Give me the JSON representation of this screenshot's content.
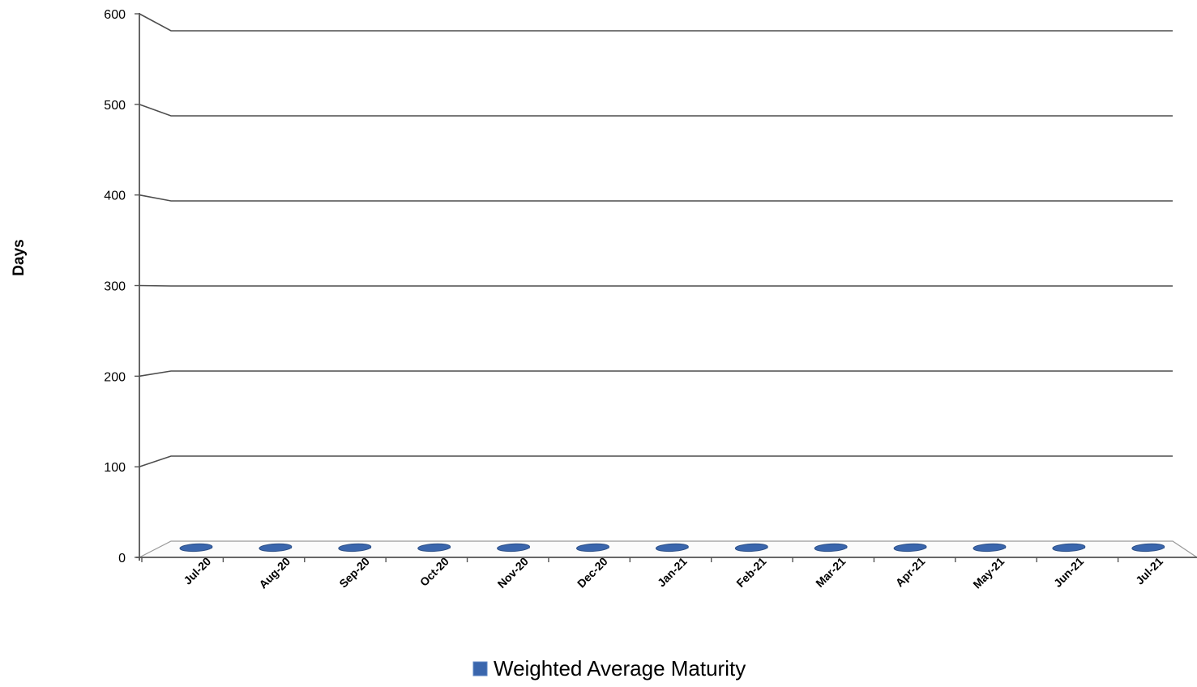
{
  "chart_data": {
    "type": "bar",
    "categories": [
      "Jul-20",
      "Aug-20",
      "Sep-20",
      "Oct-20",
      "Nov-20",
      "Dec-20",
      "Jan-21",
      "Feb-21",
      "Mar-21",
      "Apr-21",
      "May-21",
      "Jun-21",
      "Jul-21"
    ],
    "series": [
      {
        "name": "Weighted Average Maturity",
        "values": [
          1,
          1,
          1,
          1,
          1,
          1,
          1,
          1,
          1,
          1,
          1,
          1,
          1
        ]
      }
    ],
    "title": "",
    "xlabel": "",
    "ylabel": "Days",
    "ylim": [
      0,
      600
    ],
    "yticks": [
      0,
      100,
      200,
      300,
      400,
      500,
      600
    ],
    "grid": true,
    "legend_position": "bottom",
    "style": "3d-cylinder",
    "colors": {
      "bar": "#3a66ad",
      "bar_edge": "#2c4f86",
      "grid": "#4d4d4d",
      "axis": "#555555"
    }
  }
}
